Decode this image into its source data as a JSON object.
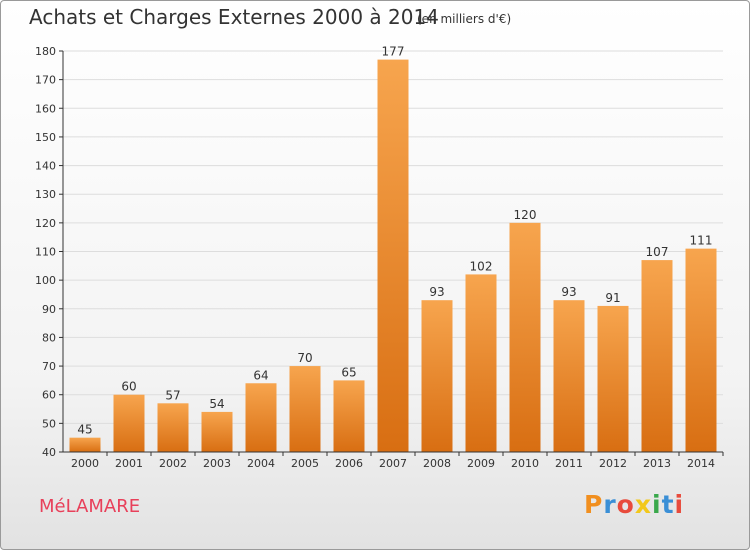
{
  "header": {
    "title": "Achats et Charges Externes 2000 à 2014",
    "subtitle": "(en milliers d'€)"
  },
  "commune": "MéLAMARE",
  "logo": {
    "text": "Proxiti",
    "colors": [
      "#f18f1f",
      "#3a8fd6",
      "#e84b3c",
      "#f2c81b",
      "#3aa84b",
      "#3a8fd6",
      "#e84b3c"
    ]
  },
  "colors": {
    "bar_light": "#f7a54e",
    "bar_dark": "#d86e12",
    "axis": "#333333",
    "grid": "#dddddd",
    "commune": "#e8405a"
  },
  "chart_data": {
    "type": "bar",
    "title": "Achats et Charges Externes 2000 à 2014",
    "subtitle": "(en milliers d'€)",
    "xlabel": "",
    "ylabel": "",
    "categories": [
      "2000",
      "2001",
      "2002",
      "2003",
      "2004",
      "2005",
      "2006",
      "2007",
      "2008",
      "2009",
      "2010",
      "2011",
      "2012",
      "2013",
      "2014"
    ],
    "values": [
      45,
      60,
      57,
      54,
      64,
      70,
      65,
      177,
      93,
      102,
      120,
      93,
      91,
      107,
      111
    ],
    "ylim": [
      40,
      180
    ],
    "yticks": [
      40,
      50,
      60,
      70,
      80,
      90,
      100,
      110,
      120,
      130,
      140,
      150,
      160,
      170,
      180
    ],
    "grid": true,
    "data_labels": true
  }
}
